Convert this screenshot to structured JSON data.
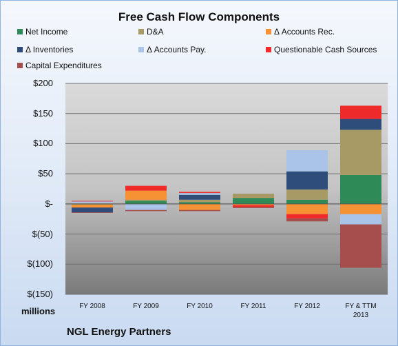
{
  "chart_data": {
    "type": "bar",
    "stacked": true,
    "title": "Free Cash Flow Components",
    "categories": [
      "FY 2008",
      "FY 2009",
      "FY 2010",
      "FY 2011",
      "FY 2012",
      "FY & TTM 2013"
    ],
    "ylim": [
      -150,
      200
    ],
    "yticks": [
      200,
      150,
      100,
      50,
      0,
      -50,
      -100,
      -150
    ],
    "ytick_labels": [
      "$200",
      "$150",
      "$100",
      "$50",
      "$-",
      "$(50)",
      "$(100)",
      "$(150)"
    ],
    "y_unit": "millions",
    "grid": true,
    "legend_position": "top",
    "series": [
      {
        "name": "Net Income",
        "color": "#2e8b57",
        "values": [
          -1,
          5,
          3,
          10,
          7,
          48
        ]
      },
      {
        "name": "D&A",
        "color": "#a89a64",
        "values": [
          1,
          2,
          4,
          7,
          17,
          75
        ]
      },
      {
        "name": "Δ Accounts Rec.",
        "color": "#f79234",
        "values": [
          -5,
          15,
          -10,
          -2,
          -17,
          -17
        ]
      },
      {
        "name": "Δ Inventories",
        "color": "#2e4d7a",
        "values": [
          -8,
          0,
          8,
          0,
          30,
          18
        ]
      },
      {
        "name": "Δ Accounts Pay.",
        "color": "#a9c4e8",
        "values": [
          3,
          -10,
          3,
          0,
          35,
          -17
        ]
      },
      {
        "name": "Questionable Cash Sources",
        "color": "#ee2a2a",
        "values": [
          1,
          8,
          2,
          -3,
          -7,
          22
        ]
      },
      {
        "name": "Capital Expenditures",
        "color": "#a64d4d",
        "values": [
          -1,
          -2,
          -2,
          -2,
          -5,
          -72
        ]
      }
    ]
  },
  "footer": {
    "unit_label": "millions",
    "company": "NGL Energy Partners"
  }
}
